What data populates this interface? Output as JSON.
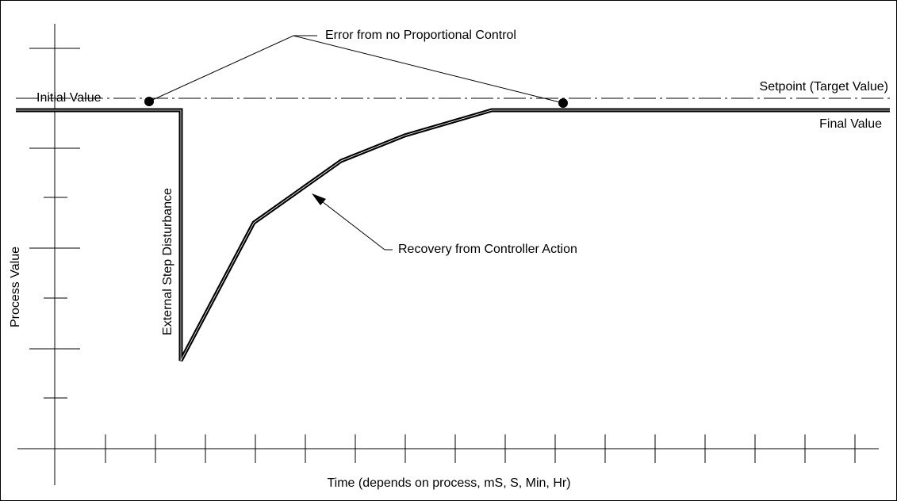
{
  "labels": {
    "error": "Error from no Proportional Control",
    "initial": "Initial Value",
    "setpoint": "Setpoint (Target Value)",
    "final": "Final Value",
    "disturbance": "External Step Disturbance",
    "recovery": "Recovery from Controller Action",
    "y_axis": "Process Value",
    "x_axis": "Time (depends on process, mS, S, Min, Hr)"
  }
}
